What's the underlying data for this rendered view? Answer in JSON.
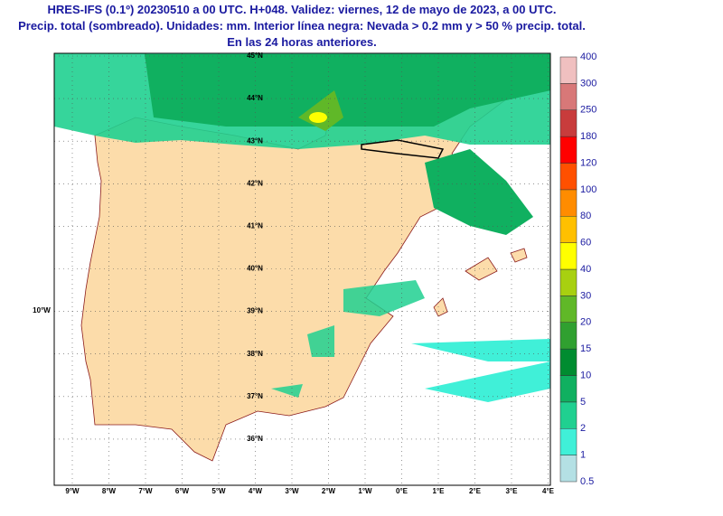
{
  "header": {
    "lines": [
      "HRES-IFS (0.1º) 20230510 a 00 UTC. H+048. Validez: viernes, 12 de mayo de 2023, a 00 UTC.",
      "Precip. total (sombreado). Unidades: mm. Interior línea negra: Nevada > 0.2 mm y > 50 % precip. total.",
      "En las 24 horas anteriores."
    ]
  },
  "map": {
    "lat_labels": [
      "45°N",
      "44°N",
      "43°N",
      "42°N",
      "41°N",
      "40°N",
      "39°N",
      "38°N",
      "37°N",
      "36°N"
    ],
    "lon_labels": [
      "9°W",
      "8°W",
      "7°W",
      "6°W",
      "5°W",
      "4°W",
      "3°W",
      "2°W",
      "1°W",
      "0°E",
      "1°E",
      "2°E",
      "3°E",
      "4°E"
    ],
    "side_label": "10°W"
  },
  "colorbar": {
    "levels": [
      0.5,
      1,
      2,
      5,
      10,
      15,
      20,
      30,
      40,
      60,
      80,
      100,
      120,
      180,
      250,
      300,
      400
    ],
    "colors": [
      "#b4e0e4",
      "#40f0d8",
      "#20d090",
      "#10b060",
      "#008c30",
      "#30a030",
      "#60b828",
      "#a8d010",
      "#ffff00",
      "#ffc000",
      "#ff8c00",
      "#ff5000",
      "#ff0000",
      "#c83c3c",
      "#d87878",
      "#f0c0c0"
    ]
  }
}
